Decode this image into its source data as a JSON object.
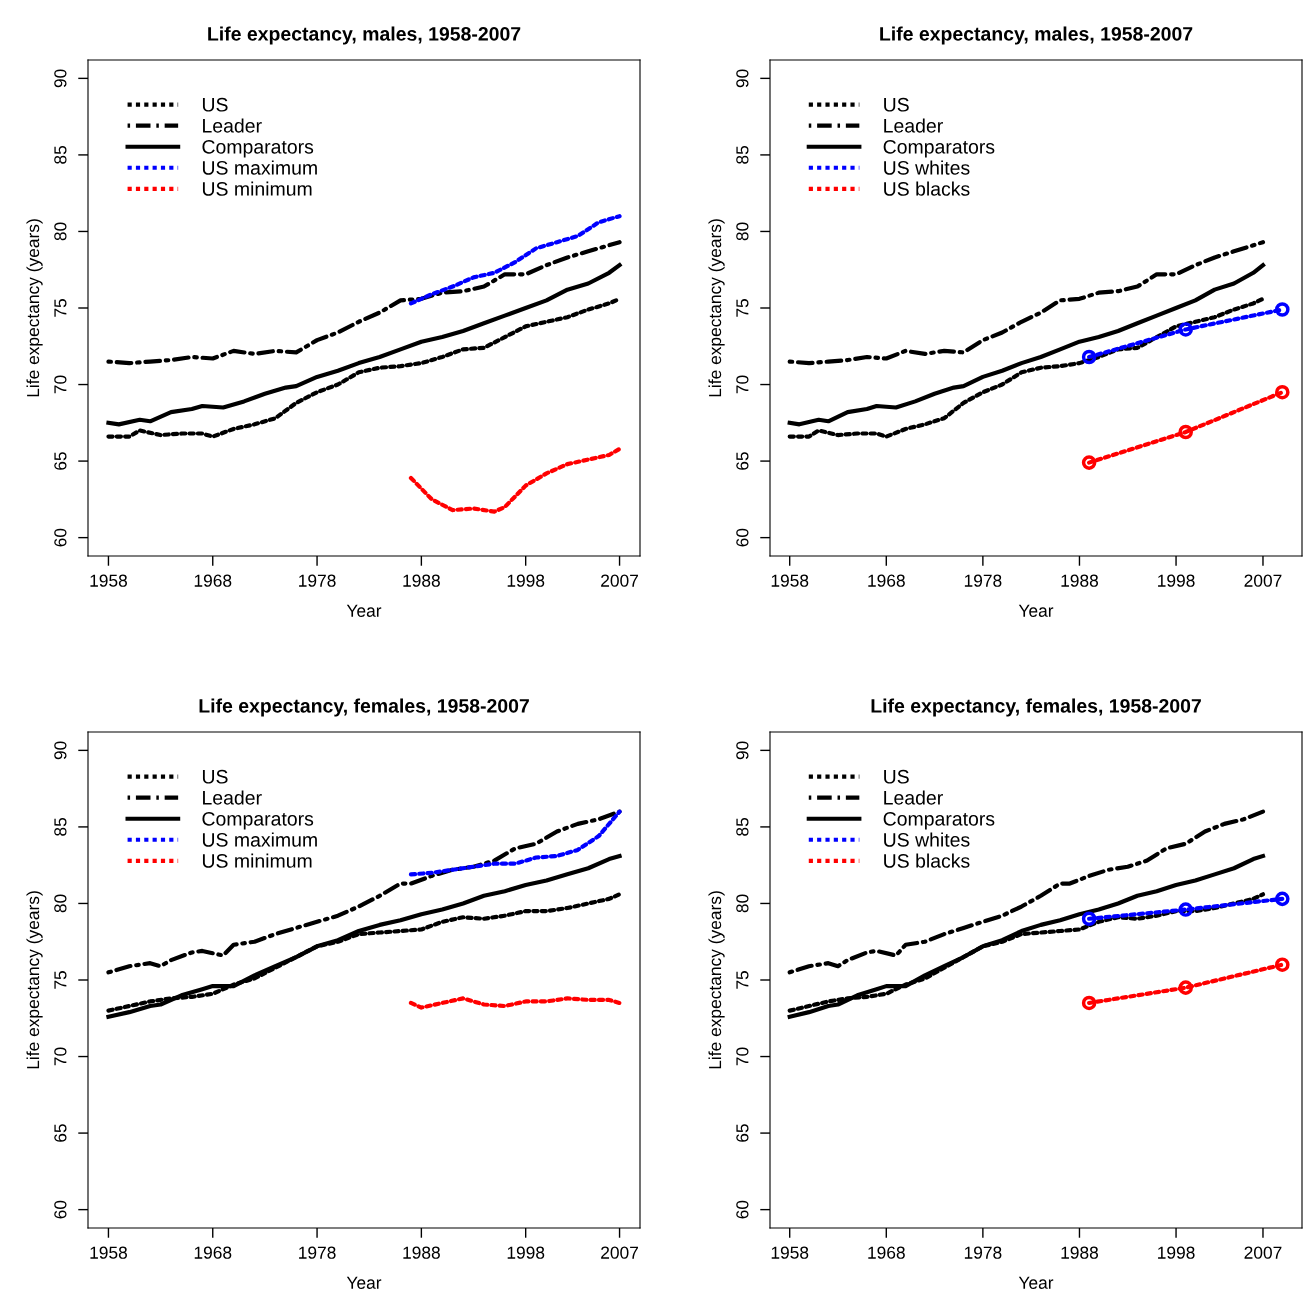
{
  "chart_data": [
    {
      "type": "line",
      "title": "Life expectancy, males, 1958-2007",
      "xlabel": "Year",
      "ylabel": "Life expectancy (years)",
      "xlim": [
        1956.04,
        2008.96
      ],
      "ylim": [
        58.8,
        91.2
      ],
      "xticks": [
        1958,
        1968,
        1978,
        1988,
        1998,
        2007
      ],
      "yticks": [
        60,
        65,
        70,
        75,
        80,
        85,
        90
      ],
      "grid": false,
      "legend": "top left",
      "series": [
        {
          "name": "US",
          "color": "#000000",
          "line_style": "dotted",
          "x": [
            1958,
            1960,
            1961,
            1963,
            1965,
            1967,
            1968,
            1970,
            1972,
            1974,
            1976,
            1978,
            1980,
            1982,
            1984,
            1986,
            1988,
            1990,
            1992,
            1994,
            1996,
            1998,
            2000,
            2002,
            2004,
            2006,
            2007
          ],
          "values": [
            66.6,
            66.6,
            67.0,
            66.7,
            66.8,
            66.8,
            66.6,
            67.1,
            67.4,
            67.8,
            68.8,
            69.5,
            70.0,
            70.8,
            71.1,
            71.2,
            71.4,
            71.8,
            72.3,
            72.4,
            73.1,
            73.8,
            74.1,
            74.4,
            74.9,
            75.3,
            75.6
          ]
        },
        {
          "name": "Leader",
          "color": "#000000",
          "line_style": "dashed",
          "x": [
            1958,
            1960,
            1962,
            1964,
            1966,
            1968,
            1970,
            1972,
            1974,
            1976,
            1978,
            1980,
            1982,
            1984,
            1986,
            1988,
            1990,
            1992,
            1994,
            1996,
            1998,
            2000,
            2002,
            2004,
            2006,
            2007
          ],
          "values": [
            71.5,
            71.4,
            71.5,
            71.6,
            71.8,
            71.7,
            72.2,
            72.0,
            72.2,
            72.1,
            72.9,
            73.4,
            74.1,
            74.7,
            75.5,
            75.6,
            76.0,
            76.1,
            76.4,
            77.2,
            77.2,
            77.8,
            78.3,
            78.7,
            79.1,
            79.3
          ]
        },
        {
          "name": "Comparators",
          "color": "#000000",
          "line_style": "solid",
          "x": [
            1958,
            1959,
            1961,
            1962,
            1964,
            1966,
            1967,
            1969,
            1971,
            1973,
            1975,
            1976,
            1978,
            1980,
            1982,
            1984,
            1986,
            1988,
            1990,
            1992,
            1994,
            1996,
            1998,
            2000,
            2002,
            2004,
            2006,
            2007
          ],
          "values": [
            67.5,
            67.4,
            67.7,
            67.6,
            68.2,
            68.4,
            68.6,
            68.5,
            68.9,
            69.4,
            69.8,
            69.9,
            70.5,
            70.9,
            71.4,
            71.8,
            72.3,
            72.8,
            73.1,
            73.5,
            74.0,
            74.5,
            75.0,
            75.5,
            76.2,
            76.6,
            77.3,
            77.8
          ]
        },
        {
          "name": "US maximum",
          "color": "#0000ff",
          "line_style": "dotted",
          "x": [
            1987,
            1989,
            1991,
            1993,
            1995,
            1997,
            1999,
            2001,
            2003,
            2005,
            2007
          ],
          "values": [
            75.3,
            75.9,
            76.4,
            77.0,
            77.3,
            78.0,
            78.9,
            79.3,
            79.7,
            80.6,
            81.0
          ]
        },
        {
          "name": "US minimum",
          "color": "#ff0000",
          "line_style": "dotted",
          "x": [
            1987,
            1989,
            1991,
            1993,
            1995,
            1996,
            1998,
            2000,
            2002,
            2004,
            2006,
            2007
          ],
          "values": [
            63.9,
            62.5,
            61.8,
            61.9,
            61.7,
            62.0,
            63.4,
            64.2,
            64.8,
            65.1,
            65.4,
            65.8
          ]
        }
      ]
    },
    {
      "type": "line",
      "title": "Life expectancy, males, 1958-2007",
      "xlabel": "Year",
      "ylabel": "Life expectancy (years)",
      "xlim": [
        1955.96,
        2011.04
      ],
      "ylim": [
        58.8,
        91.2
      ],
      "xticks": [
        1958,
        1968,
        1978,
        1988,
        1998,
        2007
      ],
      "yticks": [
        60,
        65,
        70,
        75,
        80,
        85,
        90
      ],
      "grid": false,
      "legend": "top left",
      "series": [
        {
          "name": "US",
          "color": "#000000",
          "line_style": "dotted",
          "x": [
            1958,
            1960,
            1961,
            1963,
            1965,
            1967,
            1968,
            1970,
            1972,
            1974,
            1976,
            1978,
            1980,
            1982,
            1984,
            1986,
            1988,
            1990,
            1992,
            1994,
            1996,
            1998,
            2000,
            2002,
            2004,
            2006,
            2007
          ],
          "values": [
            66.6,
            66.6,
            67.0,
            66.7,
            66.8,
            66.8,
            66.6,
            67.1,
            67.4,
            67.8,
            68.8,
            69.5,
            70.0,
            70.8,
            71.1,
            71.2,
            71.4,
            71.8,
            72.3,
            72.4,
            73.1,
            73.8,
            74.1,
            74.4,
            74.9,
            75.3,
            75.6
          ]
        },
        {
          "name": "Leader",
          "color": "#000000",
          "line_style": "dashed",
          "x": [
            1958,
            1960,
            1962,
            1964,
            1966,
            1968,
            1970,
            1972,
            1974,
            1976,
            1978,
            1980,
            1982,
            1984,
            1986,
            1988,
            1990,
            1992,
            1994,
            1996,
            1998,
            2000,
            2002,
            2004,
            2006,
            2007
          ],
          "values": [
            71.5,
            71.4,
            71.5,
            71.6,
            71.8,
            71.7,
            72.2,
            72.0,
            72.2,
            72.1,
            72.9,
            73.4,
            74.1,
            74.7,
            75.5,
            75.6,
            76.0,
            76.1,
            76.4,
            77.2,
            77.2,
            77.8,
            78.3,
            78.7,
            79.1,
            79.3
          ]
        },
        {
          "name": "Comparators",
          "color": "#000000",
          "line_style": "solid",
          "x": [
            1958,
            1959,
            1961,
            1962,
            1964,
            1966,
            1967,
            1969,
            1971,
            1973,
            1975,
            1976,
            1978,
            1980,
            1982,
            1984,
            1986,
            1988,
            1990,
            1992,
            1994,
            1996,
            1998,
            2000,
            2002,
            2004,
            2006,
            2007
          ],
          "values": [
            67.5,
            67.4,
            67.7,
            67.6,
            68.2,
            68.4,
            68.6,
            68.5,
            68.9,
            69.4,
            69.8,
            69.9,
            70.5,
            70.9,
            71.4,
            71.8,
            72.3,
            72.8,
            73.1,
            73.5,
            74.0,
            74.5,
            75.0,
            75.5,
            76.2,
            76.6,
            77.3,
            77.8
          ]
        },
        {
          "name": "US whites",
          "color": "#0000ff",
          "line_style": "dotted",
          "marker": "circle",
          "x": [
            1989,
            1999,
            2009
          ],
          "values": [
            71.8,
            73.6,
            74.9
          ]
        },
        {
          "name": "US blacks",
          "color": "#ff0000",
          "line_style": "dotted",
          "marker": "circle",
          "x": [
            1989,
            1999,
            2009
          ],
          "values": [
            64.9,
            66.9,
            69.5
          ]
        }
      ]
    },
    {
      "type": "line",
      "title": "Life expectancy, females, 1958-2007",
      "xlabel": "Year",
      "ylabel": "Life expectancy (years)",
      "xlim": [
        1956.04,
        2008.96
      ],
      "ylim": [
        58.8,
        91.2
      ],
      "xticks": [
        1958,
        1968,
        1978,
        1988,
        1998,
        2007
      ],
      "yticks": [
        60,
        65,
        70,
        75,
        80,
        85,
        90
      ],
      "grid": false,
      "legend": "top left",
      "series": [
        {
          "name": "US",
          "color": "#000000",
          "line_style": "dotted",
          "x": [
            1958,
            1960,
            1962,
            1964,
            1966,
            1968,
            1970,
            1972,
            1974,
            1976,
            1978,
            1980,
            1982,
            1984,
            1986,
            1988,
            1990,
            1992,
            1994,
            1996,
            1998,
            2000,
            2002,
            2004,
            2006,
            2007
          ],
          "values": [
            73.0,
            73.3,
            73.6,
            73.8,
            73.9,
            74.1,
            74.7,
            75.1,
            75.8,
            76.5,
            77.2,
            77.5,
            78.0,
            78.1,
            78.2,
            78.3,
            78.8,
            79.1,
            79.0,
            79.2,
            79.5,
            79.5,
            79.7,
            80.0,
            80.3,
            80.6
          ]
        },
        {
          "name": "Leader",
          "color": "#000000",
          "line_style": "dashed",
          "x": [
            1958,
            1960,
            1962,
            1963,
            1964,
            1966,
            1967,
            1969,
            1970,
            1972,
            1974,
            1976,
            1978,
            1980,
            1982,
            1984,
            1986,
            1987,
            1989,
            1991,
            1993,
            1995,
            1997,
            1999,
            2001,
            2003,
            2005,
            2007
          ],
          "values": [
            75.5,
            75.9,
            76.1,
            75.9,
            76.3,
            76.8,
            76.9,
            76.6,
            77.3,
            77.5,
            78.0,
            78.4,
            78.8,
            79.2,
            79.8,
            80.5,
            81.3,
            81.3,
            81.8,
            82.2,
            82.4,
            82.8,
            83.6,
            83.9,
            84.7,
            85.2,
            85.5,
            86.0
          ]
        },
        {
          "name": "Comparators",
          "color": "#000000",
          "line_style": "solid",
          "x": [
            1958,
            1960,
            1962,
            1963,
            1965,
            1967,
            1968,
            1970,
            1972,
            1974,
            1976,
            1978,
            1980,
            1982,
            1984,
            1986,
            1988,
            1990,
            1992,
            1994,
            1996,
            1998,
            2000,
            2002,
            2004,
            2006,
            2007
          ],
          "values": [
            72.6,
            72.9,
            73.3,
            73.4,
            74.0,
            74.4,
            74.6,
            74.6,
            75.3,
            75.9,
            76.5,
            77.2,
            77.6,
            78.2,
            78.6,
            78.9,
            79.3,
            79.6,
            80.0,
            80.5,
            80.8,
            81.2,
            81.5,
            81.9,
            82.3,
            82.9,
            83.1
          ]
        },
        {
          "name": "US maximum",
          "color": "#0000ff",
          "line_style": "dotted",
          "x": [
            1987,
            1989,
            1991,
            1993,
            1995,
            1997,
            1999,
            2001,
            2003,
            2005,
            2007
          ],
          "values": [
            81.9,
            82.0,
            82.2,
            82.4,
            82.6,
            82.6,
            83.0,
            83.1,
            83.5,
            84.4,
            86.0
          ]
        },
        {
          "name": "US minimum",
          "color": "#ff0000",
          "line_style": "dotted",
          "x": [
            1987,
            1988,
            1990,
            1992,
            1994,
            1996,
            1998,
            2000,
            2002,
            2004,
            2006,
            2007
          ],
          "values": [
            73.5,
            73.2,
            73.5,
            73.8,
            73.4,
            73.3,
            73.6,
            73.6,
            73.8,
            73.7,
            73.7,
            73.5
          ]
        }
      ]
    },
    {
      "type": "line",
      "title": "Life expectancy, females, 1958-2007",
      "xlabel": "Year",
      "ylabel": "Life expectancy (years)",
      "xlim": [
        1955.96,
        2011.04
      ],
      "ylim": [
        58.8,
        91.2
      ],
      "xticks": [
        1958,
        1968,
        1978,
        1988,
        1998,
        2007
      ],
      "yticks": [
        60,
        65,
        70,
        75,
        80,
        85,
        90
      ],
      "grid": false,
      "legend": "top left",
      "series": [
        {
          "name": "US",
          "color": "#000000",
          "line_style": "dotted",
          "x": [
            1958,
            1960,
            1962,
            1964,
            1966,
            1968,
            1970,
            1972,
            1974,
            1976,
            1978,
            1980,
            1982,
            1984,
            1986,
            1988,
            1990,
            1992,
            1994,
            1996,
            1998,
            2000,
            2002,
            2004,
            2006,
            2007
          ],
          "values": [
            73.0,
            73.3,
            73.6,
            73.8,
            73.9,
            74.1,
            74.7,
            75.1,
            75.8,
            76.5,
            77.2,
            77.5,
            78.0,
            78.1,
            78.2,
            78.3,
            78.8,
            79.1,
            79.0,
            79.2,
            79.5,
            79.5,
            79.7,
            80.0,
            80.3,
            80.6
          ]
        },
        {
          "name": "Leader",
          "color": "#000000",
          "line_style": "dashed",
          "x": [
            1958,
            1960,
            1962,
            1963,
            1964,
            1966,
            1967,
            1969,
            1970,
            1972,
            1974,
            1976,
            1978,
            1980,
            1982,
            1984,
            1986,
            1987,
            1989,
            1991,
            1993,
            1995,
            1997,
            1999,
            2001,
            2003,
            2005,
            2007
          ],
          "values": [
            75.5,
            75.9,
            76.1,
            75.9,
            76.3,
            76.8,
            76.9,
            76.6,
            77.3,
            77.5,
            78.0,
            78.4,
            78.8,
            79.2,
            79.8,
            80.5,
            81.3,
            81.3,
            81.8,
            82.2,
            82.4,
            82.8,
            83.6,
            83.9,
            84.7,
            85.2,
            85.5,
            86.0
          ]
        },
        {
          "name": "Comparators",
          "color": "#000000",
          "line_style": "solid",
          "x": [
            1958,
            1960,
            1962,
            1963,
            1965,
            1967,
            1968,
            1970,
            1972,
            1974,
            1976,
            1978,
            1980,
            1982,
            1984,
            1986,
            1988,
            1990,
            1992,
            1994,
            1996,
            1998,
            2000,
            2002,
            2004,
            2006,
            2007
          ],
          "values": [
            72.6,
            72.9,
            73.3,
            73.4,
            74.0,
            74.4,
            74.6,
            74.6,
            75.3,
            75.9,
            76.5,
            77.2,
            77.6,
            78.2,
            78.6,
            78.9,
            79.3,
            79.6,
            80.0,
            80.5,
            80.8,
            81.2,
            81.5,
            81.9,
            82.3,
            82.9,
            83.1
          ]
        },
        {
          "name": "US whites",
          "color": "#0000ff",
          "line_style": "dotted",
          "marker": "circle",
          "x": [
            1989,
            1999,
            2009
          ],
          "values": [
            79.0,
            79.6,
            80.3
          ]
        },
        {
          "name": "US blacks",
          "color": "#ff0000",
          "line_style": "dotted",
          "marker": "circle",
          "x": [
            1989,
            1999,
            2009
          ],
          "values": [
            73.5,
            74.5,
            76.0
          ]
        }
      ]
    }
  ]
}
